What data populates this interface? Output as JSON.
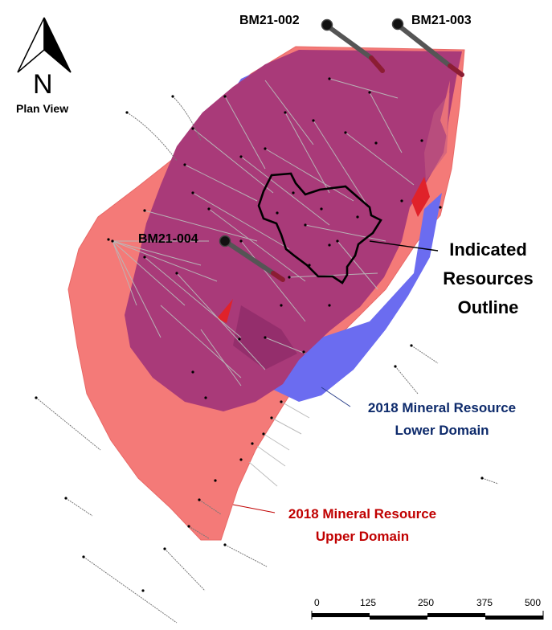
{
  "north_arrow": {
    "letter": "N",
    "subtitle": "Plan View"
  },
  "drillholes": [
    {
      "id": "BM21-002"
    },
    {
      "id": "BM21-003"
    },
    {
      "id": "BM21-004"
    }
  ],
  "annotations": {
    "indicated": [
      "Indicated",
      "Resources",
      "Outline"
    ],
    "lower_domain": [
      "2018 Mineral Resource",
      "Lower Domain"
    ],
    "upper_domain": [
      "2018 Mineral Resource",
      "Upper Domain"
    ]
  },
  "scale_bar": {
    "ticks": [
      "0",
      "125",
      "250",
      "375",
      "500"
    ]
  },
  "colors": {
    "upper_domain": "#f47a78",
    "lower_domain": "#6b6cf0",
    "overlap": "#a93a79",
    "lower_domain_text": "#0d2a6b",
    "upper_domain_text": "#c00000",
    "indicated_outline": "#000000"
  }
}
